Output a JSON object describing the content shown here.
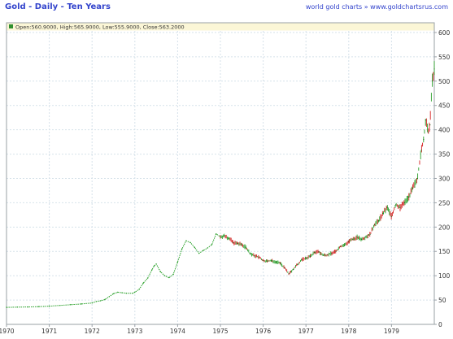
{
  "colors": {
    "title": "#3344cc",
    "source": "#3344cc",
    "grid": "#d6e2ea",
    "frame": "#9aa0a6",
    "up": "#2aa02a",
    "down": "#d42020",
    "ohlc_bar": "#fbf6d6",
    "legend_marker": "#2f8f2f"
  },
  "header": {
    "title": "Gold - Daily - Ten Years",
    "source": "world gold charts » www.goldchartsrus.com"
  },
  "ohlc": {
    "text": "Open:560.9000, High:565.9000, Low:555.9000, Close:563.2000"
  },
  "chart_data": {
    "type": "line",
    "title": "Gold - Daily - Ten Years",
    "xlabel": "",
    "ylabel": "",
    "x_range": [
      1970,
      1980
    ],
    "ylim": [
      0,
      620
    ],
    "y_ticks": [
      0,
      50,
      100,
      150,
      200,
      250,
      300,
      350,
      400,
      450,
      500,
      550,
      600
    ],
    "x_ticks": [
      "1970",
      "1971",
      "1972",
      "1973",
      "1974",
      "1975",
      "1976",
      "1977",
      "1978",
      "1979"
    ],
    "grid": true,
    "series": [
      {
        "style": "green-dashes",
        "points": [
          [
            1970.0,
            35
          ],
          [
            1970.25,
            35.5
          ],
          [
            1970.5,
            35.8
          ],
          [
            1970.75,
            36.5
          ],
          [
            1971.0,
            37.5
          ],
          [
            1971.25,
            39
          ],
          [
            1971.5,
            40.5
          ],
          [
            1971.75,
            42
          ],
          [
            1972.0,
            44
          ],
          [
            1972.1,
            47
          ],
          [
            1972.2,
            48.5
          ],
          [
            1972.3,
            51
          ],
          [
            1972.4,
            57
          ],
          [
            1972.5,
            63
          ],
          [
            1972.6,
            66
          ],
          [
            1972.7,
            65
          ],
          [
            1972.8,
            64
          ],
          [
            1972.95,
            64
          ],
          [
            1973.0,
            66
          ],
          [
            1973.1,
            72
          ],
          [
            1973.2,
            85
          ],
          [
            1973.3,
            95
          ],
          [
            1973.4,
            112
          ],
          [
            1973.45,
            120
          ],
          [
            1973.5,
            124
          ],
          [
            1973.6,
            108
          ],
          [
            1973.7,
            100
          ],
          [
            1973.8,
            96
          ],
          [
            1973.9,
            103
          ],
          [
            1974.0,
            128
          ],
          [
            1974.1,
            155
          ],
          [
            1974.2,
            172
          ],
          [
            1974.3,
            168
          ],
          [
            1974.4,
            158
          ],
          [
            1974.5,
            146
          ],
          [
            1974.6,
            152
          ],
          [
            1974.7,
            157
          ],
          [
            1974.8,
            164
          ],
          [
            1974.9,
            186
          ],
          [
            1975.0,
            180
          ]
        ]
      },
      {
        "style": "candles",
        "points": [
          [
            1975.0,
            180
          ],
          [
            1975.1,
            182
          ],
          [
            1975.2,
            177
          ],
          [
            1975.3,
            168
          ],
          [
            1975.4,
            166
          ],
          [
            1975.5,
            164
          ],
          [
            1975.6,
            158
          ],
          [
            1975.7,
            145
          ],
          [
            1975.8,
            141
          ],
          [
            1975.9,
            138
          ],
          [
            1976.0,
            131
          ],
          [
            1976.1,
            130
          ],
          [
            1976.2,
            131
          ],
          [
            1976.3,
            128
          ],
          [
            1976.4,
            126
          ],
          [
            1976.5,
            116
          ],
          [
            1976.6,
            104
          ],
          [
            1976.65,
            108
          ],
          [
            1976.7,
            113
          ],
          [
            1976.8,
            123
          ],
          [
            1976.9,
            133
          ],
          [
            1977.0,
            136
          ],
          [
            1977.1,
            140
          ],
          [
            1977.2,
            148
          ],
          [
            1977.3,
            149
          ],
          [
            1977.4,
            142
          ],
          [
            1977.5,
            143
          ],
          [
            1977.6,
            146
          ],
          [
            1977.7,
            150
          ],
          [
            1977.8,
            160
          ],
          [
            1977.9,
            163
          ],
          [
            1978.0,
            170
          ],
          [
            1978.1,
            175
          ],
          [
            1978.2,
            179
          ],
          [
            1978.3,
            175
          ],
          [
            1978.4,
            180
          ],
          [
            1978.5,
            185
          ],
          [
            1978.6,
            205
          ],
          [
            1978.7,
            213
          ],
          [
            1978.8,
            228
          ],
          [
            1978.9,
            240
          ],
          [
            1979.0,
            222
          ],
          [
            1979.1,
            246
          ],
          [
            1979.2,
            240
          ],
          [
            1979.3,
            250
          ],
          [
            1979.4,
            262
          ],
          [
            1979.5,
            280
          ],
          [
            1979.6,
            300
          ],
          [
            1979.7,
            358
          ],
          [
            1979.75,
            380
          ],
          [
            1979.8,
            420
          ],
          [
            1979.85,
            395
          ],
          [
            1979.9,
            410
          ],
          [
            1979.95,
            500
          ],
          [
            1980.0,
            525
          ]
        ]
      }
    ]
  }
}
